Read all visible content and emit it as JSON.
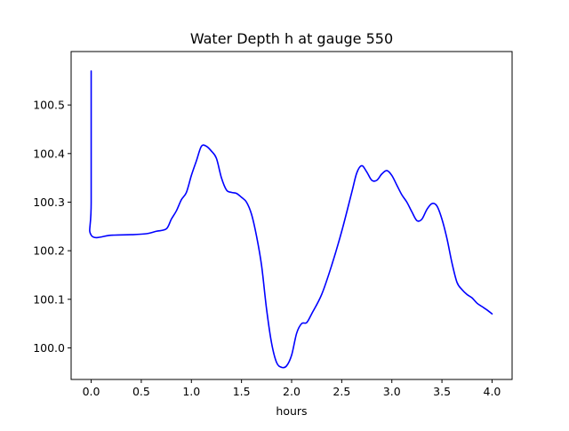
{
  "chart_data": {
    "type": "line",
    "title": "Water Depth h at gauge 550",
    "xlabel": "hours",
    "ylabel": "",
    "xlim": [
      -0.2,
      4.2
    ],
    "ylim": [
      99.935,
      100.61
    ],
    "xticks": [
      0.0,
      0.5,
      1.0,
      1.5,
      2.0,
      2.5,
      3.0,
      3.5,
      4.0
    ],
    "xtick_labels": [
      "0.0",
      "0.5",
      "1.0",
      "1.5",
      "2.0",
      "2.5",
      "3.0",
      "3.5",
      "4.0"
    ],
    "yticks": [
      100.0,
      100.1,
      100.2,
      100.3,
      100.4,
      100.5
    ],
    "ytick_labels": [
      "100.0",
      "100.1",
      "100.2",
      "100.3",
      "100.4",
      "100.5"
    ],
    "grid": false,
    "series": [
      {
        "color": "#0000ff",
        "x": [
          0.0,
          0.0,
          0.0,
          0.2,
          0.4,
          0.55,
          0.65,
          0.75,
          0.8,
          0.85,
          0.9,
          0.95,
          1.0,
          1.05,
          1.1,
          1.15,
          1.2,
          1.25,
          1.3,
          1.35,
          1.4,
          1.45,
          1.5,
          1.55,
          1.6,
          1.65,
          1.7,
          1.75,
          1.8,
          1.85,
          1.9,
          1.95,
          2.0,
          2.05,
          2.1,
          2.15,
          2.2,
          2.3,
          2.4,
          2.5,
          2.6,
          2.65,
          2.7,
          2.75,
          2.8,
          2.85,
          2.9,
          2.95,
          3.0,
          3.05,
          3.1,
          3.15,
          3.2,
          3.25,
          3.3,
          3.35,
          3.4,
          3.45,
          3.5,
          3.55,
          3.6,
          3.65,
          3.7,
          3.75,
          3.8,
          3.85,
          3.9,
          3.95,
          4.0
        ],
        "y": [
          100.57,
          100.3,
          100.232,
          100.232,
          100.233,
          100.235,
          100.24,
          100.245,
          100.265,
          100.282,
          100.305,
          100.32,
          100.355,
          100.385,
          100.415,
          100.415,
          100.405,
          100.39,
          100.35,
          100.325,
          100.32,
          100.318,
          100.31,
          100.3,
          100.275,
          100.23,
          100.17,
          100.08,
          100.01,
          99.97,
          99.96,
          99.963,
          99.985,
          100.03,
          100.05,
          100.052,
          100.07,
          100.11,
          100.17,
          100.24,
          100.32,
          100.36,
          100.375,
          100.362,
          100.345,
          100.345,
          100.358,
          100.365,
          100.355,
          100.335,
          100.315,
          100.3,
          100.28,
          100.262,
          100.265,
          100.285,
          100.297,
          100.292,
          100.265,
          100.225,
          100.175,
          100.135,
          100.12,
          100.11,
          100.103,
          100.092,
          100.085,
          100.078,
          100.07
        ]
      }
    ]
  }
}
